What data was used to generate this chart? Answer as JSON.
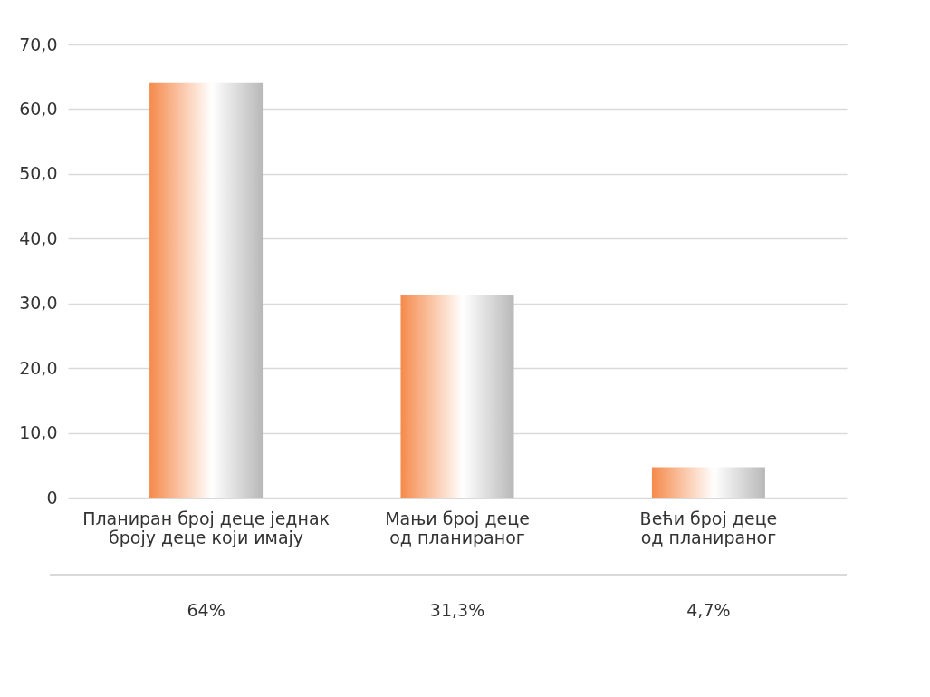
{
  "chart_data": {
    "type": "bar",
    "categories": [
      "Планиран број деце једнак\nброју деце који имају",
      "Мањи број деце\nод планираног",
      "Већи број деце\nод планираног"
    ],
    "values": [
      64,
      31.3,
      4.7
    ],
    "value_labels": [
      "64%",
      "31,3%",
      "4,7%"
    ],
    "color": "#f58a4b",
    "ylim": [
      0,
      70
    ],
    "yticks": [
      0,
      {
        "value": 10,
        "label": "10,0"
      },
      {
        "value": 20,
        "label": "20,0"
      },
      {
        "value": 30,
        "label": "30,0"
      },
      {
        "value": 40,
        "label": "40,0"
      },
      {
        "value": 50,
        "label": "50,0"
      },
      {
        "value": 60,
        "label": "60,0"
      },
      {
        "value": 70,
        "label": "70,0"
      }
    ],
    "grid": "y"
  }
}
